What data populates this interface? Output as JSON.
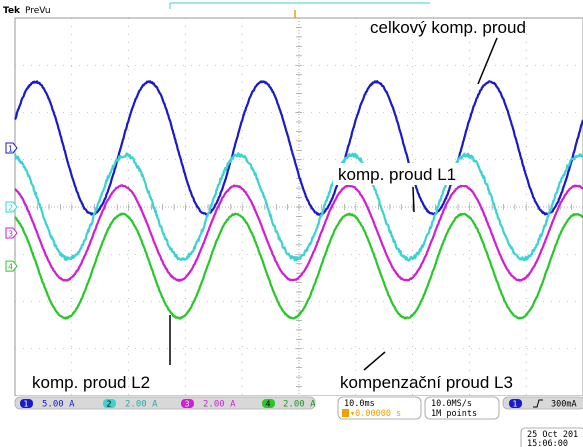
{
  "header": {
    "brand": "Tek",
    "mode": "PreVu"
  },
  "annotations": {
    "total": "celkový komp. proud",
    "l1": "komp. proud L1",
    "l2": "komp. proud L2",
    "l3": "kompenzační proud L3"
  },
  "colors": {
    "ch1": "#1a1ac8",
    "ch2": "#3cd2d2",
    "ch3": "#d21ed2",
    "ch4": "#28c828",
    "grid": "#9a9a9a",
    "panel": "#d8d8d8"
  },
  "status": {
    "ch1_num": "1",
    "ch1_scale": "5.00 A",
    "ch2_num": "2",
    "ch2_scale": "2.00 A",
    "ch3_num": "3",
    "ch3_scale": "2.00 A",
    "ch4_num": "4",
    "ch4_scale": "2.00 A",
    "timebase": "10.0ms",
    "delay": "▾0.00000 s",
    "sample_rate": "10.0MS/s",
    "record_length": "1M points",
    "trigger_channel": "1",
    "trigger_level": "300mA",
    "date": "25 Oct  201",
    "time": "15:06:00"
  },
  "chart_data": {
    "type": "line",
    "x_unit": "ms",
    "x_range": [
      0,
      100
    ],
    "y_unit": "div",
    "y_range": [
      -4,
      4
    ],
    "grid": true,
    "x_divisions": 10,
    "y_divisions": 8,
    "series": [
      {
        "channel": "1",
        "color": "#1a1ac8",
        "offset_div": 1.25,
        "amplitude_div": 1.4,
        "period_ms": 20,
        "phase_deg": 25,
        "noise": 0.35
      },
      {
        "channel": "2",
        "color": "#3cd2d2",
        "offset_div": 0.0,
        "amplitude_div": 1.1,
        "period_ms": 20,
        "phase_deg": 100,
        "noise": 0.9
      },
      {
        "channel": "3",
        "color": "#d21ed2",
        "offset_div": -0.55,
        "amplitude_div": 1.0,
        "period_ms": 20,
        "phase_deg": 110,
        "noise": 0.25
      },
      {
        "channel": "4",
        "color": "#28c828",
        "offset_div": -1.25,
        "amplitude_div": 1.1,
        "period_ms": 20,
        "phase_deg": 110,
        "noise": 0.3
      }
    ],
    "channel_markers": [
      {
        "channel": "1",
        "level_div": 1.25
      },
      {
        "channel": "2",
        "level_div": 0.0
      },
      {
        "channel": "3",
        "level_div": -0.55
      },
      {
        "channel": "4",
        "level_div": -1.25
      }
    ]
  }
}
